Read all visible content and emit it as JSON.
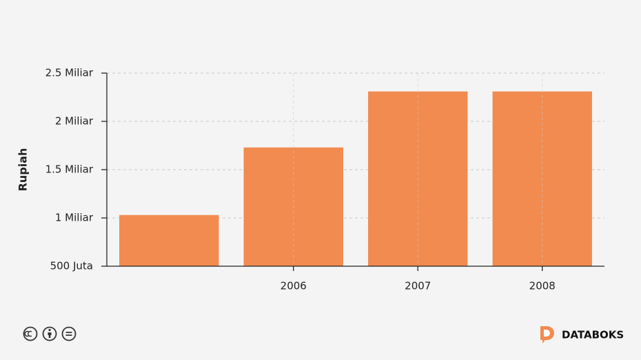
{
  "chart_data": {
    "type": "bar",
    "y_label": "Rupiah",
    "categories": [
      null,
      "2006",
      "2007",
      "2008"
    ],
    "values": [
      1030000000,
      1730000000,
      2310000000,
      2310000000
    ],
    "color": "#f28b50",
    "ylim": [
      500000000,
      2500000000
    ],
    "yticks": [
      {
        "value": 500000000,
        "label": "500 Juta"
      },
      {
        "value": 1000000000,
        "label": "1 Miliar"
      },
      {
        "value": 1500000000,
        "label": "1.5 Miliar"
      },
      {
        "value": 2000000000,
        "label": "2 Miliar"
      },
      {
        "value": 2500000000,
        "label": "2.5 Miliar"
      }
    ],
    "grid": true
  },
  "footer": {
    "brand": "DATABOKS"
  }
}
